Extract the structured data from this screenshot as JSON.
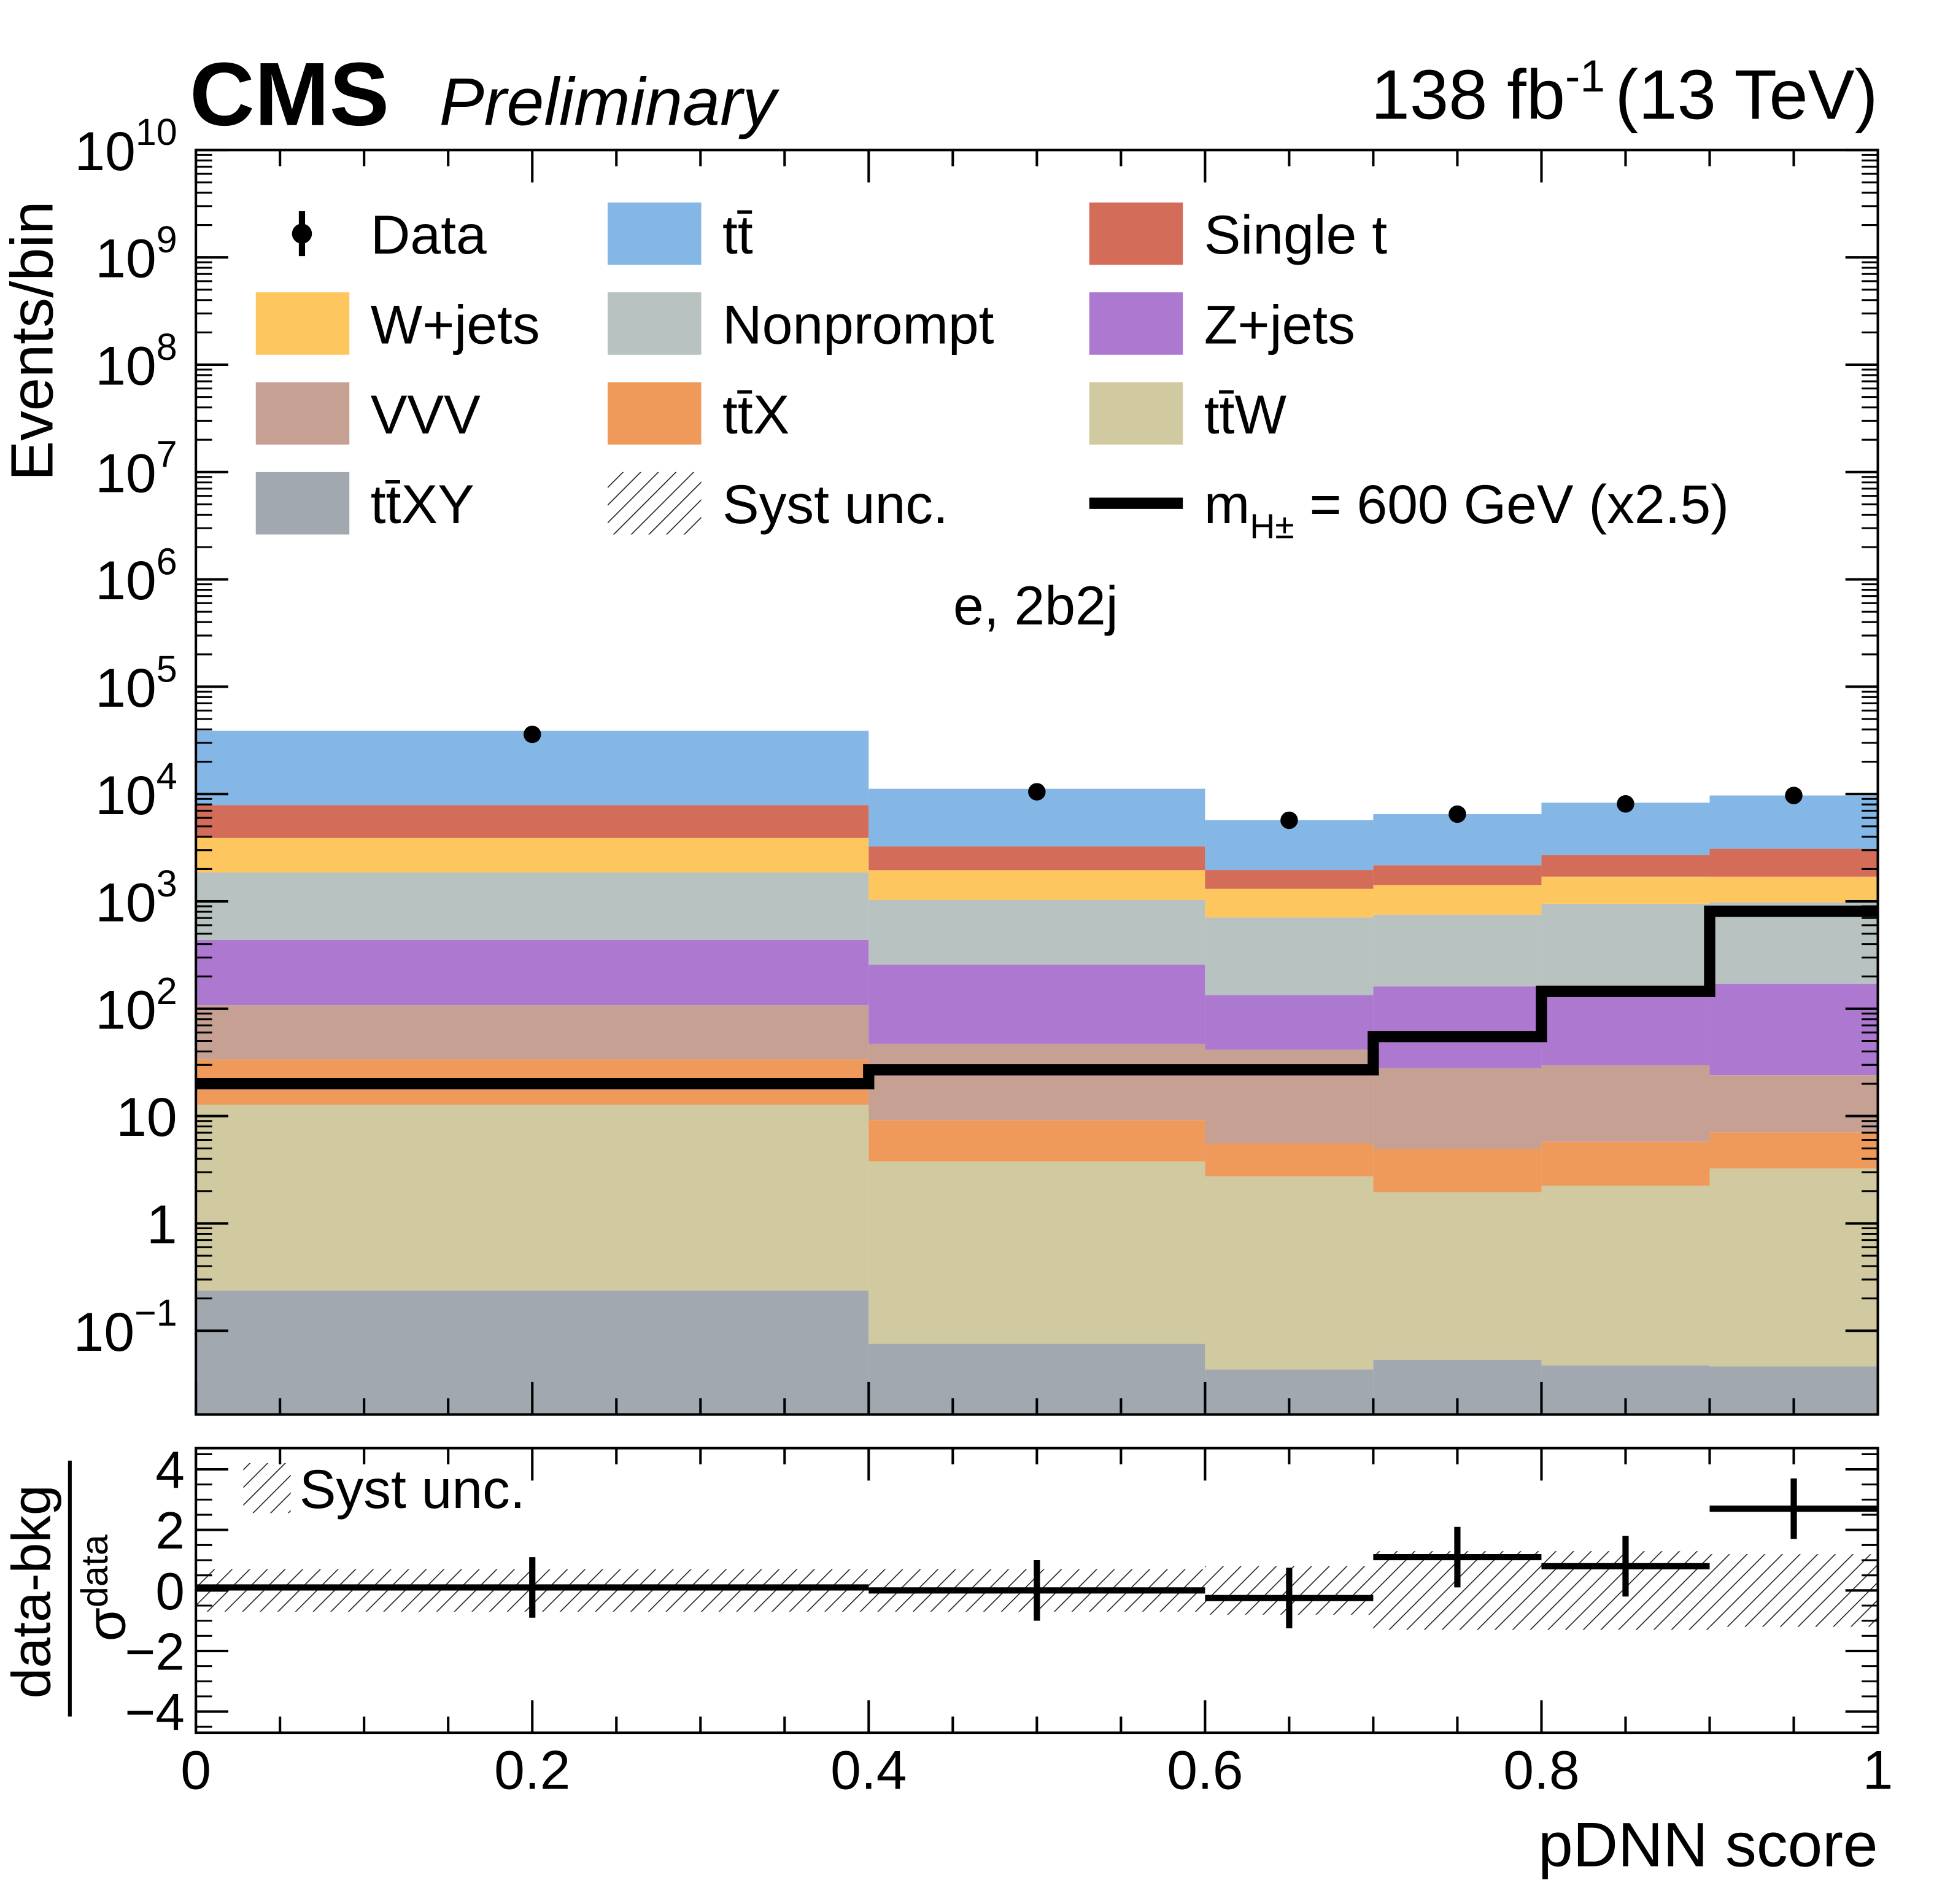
{
  "header": {
    "experiment": "CMS",
    "status": "Preliminary",
    "lumi": "138 fb",
    "lumi_sup": "-1",
    "energy": "(13 TeV)"
  },
  "category_label": "e, 2b2j",
  "chart_data": [
    {
      "type": "bar",
      "stacked": true,
      "ylabel": "Events/bin",
      "yscale": "log",
      "ylim": [
        0.0166,
        10000000000.0
      ],
      "xlim": [
        0,
        1
      ],
      "bin_edges": [
        0,
        0.4,
        0.6,
        0.7,
        0.8,
        0.9,
        1.0
      ],
      "ytick_labels": [
        {
          "v": 10000000000.0,
          "base": "10",
          "exp": "10"
        },
        {
          "v": 1000000000.0,
          "base": "10",
          "exp": "9"
        },
        {
          "v": 100000000.0,
          "base": "10",
          "exp": "8"
        },
        {
          "v": 10000000.0,
          "base": "10",
          "exp": "7"
        },
        {
          "v": 1000000.0,
          "base": "10",
          "exp": "6"
        },
        {
          "v": 100000.0,
          "base": "10",
          "exp": "5"
        },
        {
          "v": 10000.0,
          "base": "10",
          "exp": "4"
        },
        {
          "v": 1000.0,
          "base": "10",
          "exp": "3"
        },
        {
          "v": 100.0,
          "base": "10",
          "exp": "2"
        },
        {
          "v": 10,
          "base": "10",
          "exp": ""
        },
        {
          "v": 1,
          "base": "1",
          "exp": ""
        },
        {
          "v": 0.1,
          "base": "10",
          "exp": "−1"
        }
      ],
      "stack_order_bottom_to_top": [
        "ttXY",
        "ttW",
        "ttX",
        "VVV",
        "Z+jets",
        "Nonprompt",
        "W+jets",
        "Single t",
        "tt"
      ],
      "series": [
        {
          "name": "tt̄XY",
          "key": "ttXY",
          "color": "#a2a8b0",
          "values": [
            0.22,
            0.059,
            0.027,
            0.037,
            0.031,
            0.03
          ]
        },
        {
          "name": "tt̄W",
          "key": "ttW",
          "color": "#d1c9a0",
          "values": [
            12.5,
            3.7,
            2.7,
            1.9,
            2.2,
            3.2
          ]
        },
        {
          "name": "tt̄X",
          "key": "ttX",
          "color": "#ef9a5b",
          "values": [
            21,
            5.4,
            2.8,
            3.0,
            3.5,
            3.8
          ]
        },
        {
          "name": "VVV",
          "key": "VVV",
          "color": "#c6a093",
          "values": [
            74,
            38,
            36,
            23,
            24,
            17
          ]
        },
        {
          "name": "Z+jets",
          "key": "Z+jets",
          "color": "#ad78d0",
          "values": [
            330,
            210,
            92,
            134,
            132,
            146
          ]
        },
        {
          "name": "Nonprompt",
          "key": "Nonprompt",
          "color": "#b8c2c0",
          "values": [
            1420,
            775,
            575,
            590,
            790,
            810
          ]
        },
        {
          "name": "W+jets",
          "key": "W+jets",
          "color": "#fdc65e",
          "values": [
            2040,
            920,
            600,
            670,
            750,
            720
          ]
        },
        {
          "name": "Single t",
          "key": "Single t",
          "color": "#d46c5a",
          "values": [
            4000,
            1300,
            650,
            750,
            1000,
            1400
          ]
        },
        {
          "name": "tt̄",
          "key": "tt",
          "color": "#84b6e6",
          "values": [
            31000,
            7950,
            3750,
            4330,
            5600,
            6600
          ]
        }
      ],
      "data": {
        "name": "Data",
        "x": [
          0.2,
          0.5,
          0.65,
          0.75,
          0.85,
          0.95
        ],
        "values": [
          36000,
          10500,
          5700,
          6500,
          8100,
          9700
        ]
      },
      "signal": {
        "name": "m_H± = 600 GeV (x2.5)",
        "values": [
          20,
          27,
          27,
          55,
          145,
          810
        ]
      },
      "legend": {
        "placement": "top",
        "columns": 3,
        "entries": [
          {
            "label": "Data",
            "type": "marker"
          },
          {
            "label": "tt̄",
            "type": "fill",
            "color": "#84b6e6"
          },
          {
            "label": "Single t",
            "type": "fill",
            "color": "#d46c5a"
          },
          {
            "label": "W+jets",
            "type": "fill",
            "color": "#fdc65e"
          },
          {
            "label": "Nonprompt",
            "type": "fill",
            "color": "#b8c2c0"
          },
          {
            "label": "Z+jets",
            "type": "fill",
            "color": "#ad78d0"
          },
          {
            "label": "VVV",
            "type": "fill",
            "color": "#c6a093"
          },
          {
            "label": "tt̄X",
            "type": "fill",
            "color": "#ef9a5b"
          },
          {
            "label": "tt̄W",
            "type": "fill",
            "color": "#d1c9a0"
          },
          {
            "label": "tt̄XY",
            "type": "fill",
            "color": "#a2a8b0"
          },
          {
            "label": "Syst unc.",
            "type": "hatch"
          },
          {
            "label": "m",
            "sub": "H±",
            "rest": " = 600 GeV (x2.5)",
            "type": "line"
          }
        ]
      }
    },
    {
      "type": "scatter",
      "ylabel_num": "data-bkg",
      "ylabel_den": "σ",
      "ylabel_den_sub": "data",
      "xlabel": "pDNN score",
      "ylim": [
        -4.7,
        4.7
      ],
      "yticks": [
        4,
        2,
        0,
        -2,
        -4
      ],
      "ytick_labels": [
        "4",
        "2",
        "0",
        "−2",
        "−4"
      ],
      "xticks": [
        0,
        0.2,
        0.4,
        0.6,
        0.8,
        1
      ],
      "xtick_labels": [
        "0",
        "0.2",
        "0.4",
        "0.6",
        "0.8",
        "1"
      ],
      "bin_edges": [
        0,
        0.4,
        0.6,
        0.7,
        0.8,
        0.9,
        1.0
      ],
      "x": [
        0.2,
        0.5,
        0.65,
        0.75,
        0.85,
        0.95
      ],
      "values": [
        0.1,
        0.0,
        -0.25,
        1.1,
        0.8,
        2.7
      ],
      "errors": [
        1,
        1,
        1,
        1,
        1,
        1
      ],
      "syst_band": [
        0.7,
        0.7,
        0.8,
        1.3,
        1.3,
        1.2
      ],
      "legend_label": "Syst unc."
    }
  ]
}
